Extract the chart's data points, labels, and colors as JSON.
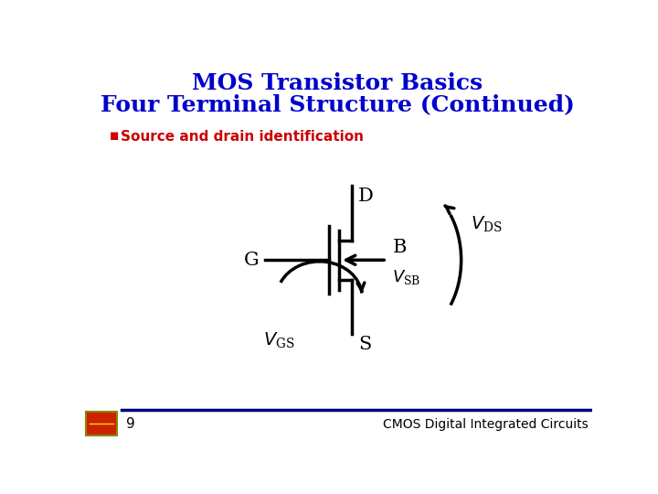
{
  "title_line1": "MOS Transistor Basics",
  "title_line2": "Four Terminal Structure (Continued)",
  "title_color": "#0000CC",
  "bullet_text": "Source and drain identification",
  "bullet_color": "#CC0000",
  "page_number": "9",
  "footer_text": "CMOS Digital Integrated Circuits",
  "bg_color": "#FFFFFF",
  "transistor_color": "#000000",
  "label_color": "#000000",
  "footer_line_color": "#000080",
  "logo_color": "#CC2200"
}
